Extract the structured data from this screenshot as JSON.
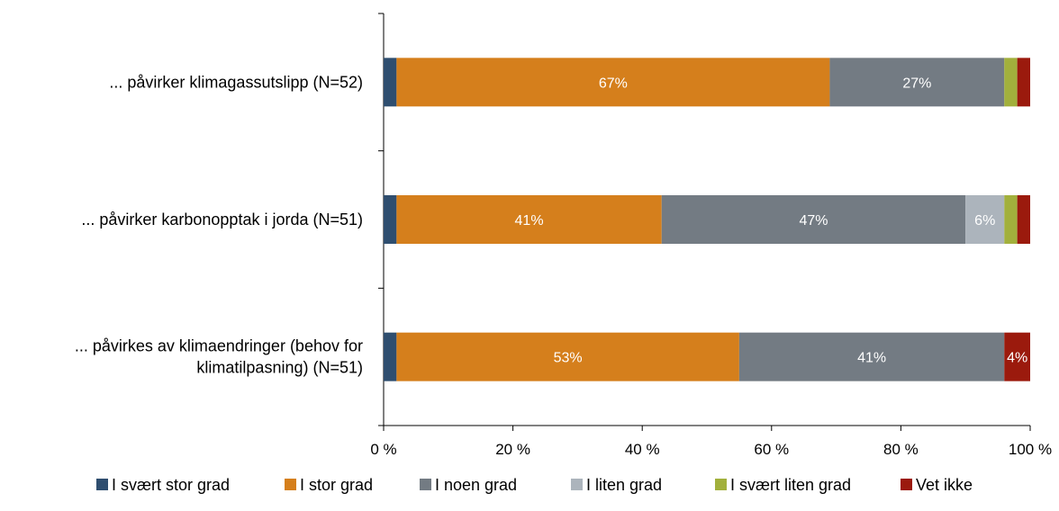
{
  "chart_data": {
    "type": "bar",
    "orientation": "horizontal",
    "stacked": "100%",
    "categories": [
      [
        "... påvirker klimagassutslipp (N=52)"
      ],
      [
        "... påvirker karbonopptak i jorda (N=51)"
      ],
      [
        "... påvirkes av klimaendringer (behov for",
        "klimatilpasning) (N=51)"
      ]
    ],
    "series": [
      {
        "name": "I svært stor grad",
        "color": "#2f4e6f",
        "values": [
          2,
          2,
          2
        ],
        "labels": [
          "",
          "",
          ""
        ]
      },
      {
        "name": "I stor grad",
        "color": "#d57f1c",
        "values": [
          67,
          41,
          53
        ],
        "labels": [
          "67%",
          "41%",
          "53%"
        ]
      },
      {
        "name": "I noen grad",
        "color": "#737b83",
        "values": [
          27,
          47,
          41
        ],
        "labels": [
          "27%",
          "47%",
          "41%"
        ]
      },
      {
        "name": "I liten grad",
        "color": "#acb4bc",
        "values": [
          0,
          6,
          0
        ],
        "labels": [
          "",
          "6%",
          ""
        ]
      },
      {
        "name": "I svært liten grad",
        "color": "#a2b03c",
        "values": [
          2,
          2,
          0
        ],
        "labels": [
          "",
          "",
          ""
        ]
      },
      {
        "name": "Vet ikke",
        "color": "#9b1a0d",
        "values": [
          2,
          2,
          4
        ],
        "labels": [
          "",
          "",
          "4%"
        ]
      }
    ],
    "x_ticks": [
      "0 %",
      "20 %",
      "40 %",
      "60 %",
      "80 %",
      "100 %"
    ],
    "xlim": [
      0,
      100
    ],
    "grid": false,
    "legend": "bottom"
  }
}
